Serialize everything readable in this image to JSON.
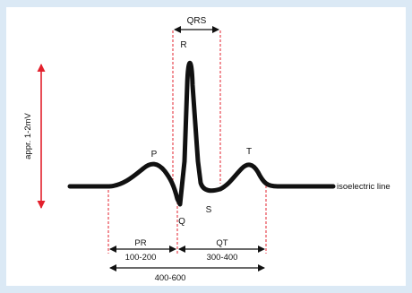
{
  "labels": {
    "qrs": "QRS",
    "r": "R",
    "p": "P",
    "q": "Q",
    "s": "S",
    "t": "T",
    "isoelectric": "isoelectric line",
    "amplitude": "appr. 1-2mV",
    "pr": "PR",
    "pr_range": "100-200",
    "qt": "QT",
    "qt_range": "300-400",
    "total_range": "400-600"
  },
  "colors": {
    "background": "#dbe9f5",
    "panel": "#ffffff",
    "trace": "#111111",
    "amplitude_arrow": "#e3202c",
    "guide_lines": "#e3202c",
    "measure_arrows": "#111111"
  }
}
